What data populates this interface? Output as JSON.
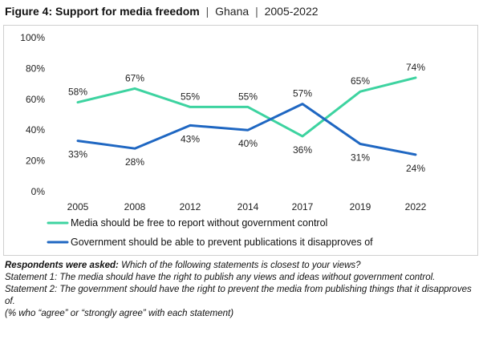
{
  "title": {
    "main": "Figure 4: Support for media freedom",
    "separator": "|",
    "country": "Ghana",
    "period": "2005-2022"
  },
  "chart_data": {
    "type": "line",
    "x": [
      "2005",
      "2008",
      "2012",
      "2014",
      "2017",
      "2019",
      "2022"
    ],
    "ylim": [
      0,
      100
    ],
    "yticks": [
      0,
      20,
      40,
      60,
      80,
      100
    ],
    "ytick_labels": [
      "0%",
      "20%",
      "40%",
      "60%",
      "80%",
      "100%"
    ],
    "grid": false,
    "legend_position": "bottom",
    "series": [
      {
        "name": "Media should be free to report without government control",
        "color": "#3dd3a0",
        "values": [
          58,
          67,
          55,
          55,
          36,
          65,
          74
        ],
        "labels": [
          "58%",
          "67%",
          "55%",
          "55%",
          "36%",
          "65%",
          "74%"
        ]
      },
      {
        "name": "Government should be able to prevent publications it disapproves of",
        "color": "#1f67c2",
        "values": [
          33,
          28,
          43,
          40,
          57,
          31,
          24
        ],
        "labels": [
          "33%",
          "28%",
          "43%",
          "40%",
          "57%",
          "31%",
          "24%"
        ]
      }
    ]
  },
  "notes": {
    "asked_label": "Respondents were asked:",
    "asked_text": "Which of the following statements is closest to your views?",
    "statement1": "Statement 1: The media should have the right to publish any views and ideas without government control.",
    "statement2": "Statement 2: The government should have the right to prevent the media from publishing things that it disapproves of.",
    "footnote": "(% who “agree” or “strongly agree” with each statement)"
  }
}
